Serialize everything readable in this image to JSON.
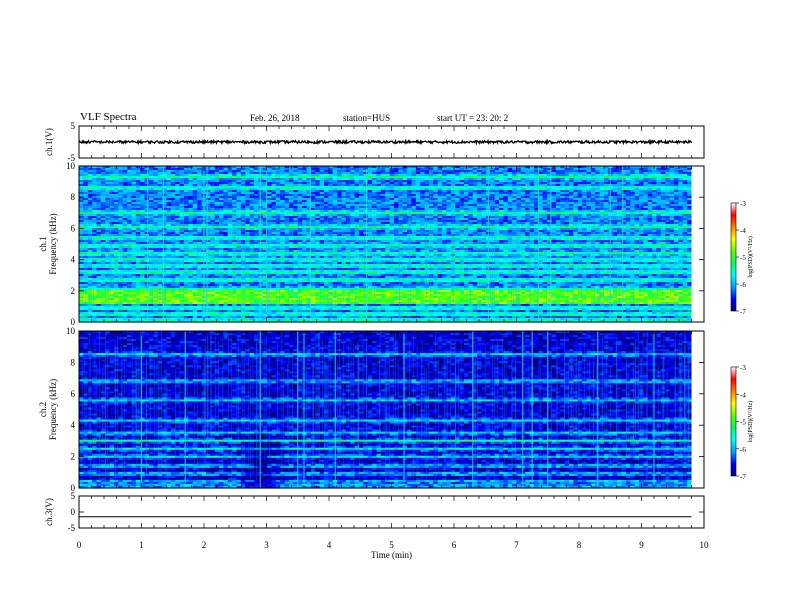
{
  "header": {
    "title": "VLF Spectra",
    "date": "Feb. 26, 2018",
    "station": "station=HUS",
    "start": "start  UT  =   23: 20: 2"
  },
  "chart_data": [
    {
      "type": "line",
      "panel": "ch1-waveform",
      "ylabel": "ch.1(V)",
      "ylim": [
        -5,
        5
      ],
      "yticks": [
        "5",
        "-5"
      ],
      "xlim": [
        0,
        10
      ],
      "series": [
        {
          "values_mean": 0.0,
          "noise_amplitude": 0.4,
          "x_end": 9.8
        }
      ]
    },
    {
      "type": "heatmap",
      "panel": "ch1-spectrogram",
      "ylabel": "ch.1\nFrequency (kHz)",
      "ylabel_line1": "ch.1",
      "ylabel_line2": "Frequency (kHz)",
      "ylim": [
        0,
        10
      ],
      "yticks": [
        "0",
        "2",
        "4",
        "6",
        "8",
        "10"
      ],
      "xlim": [
        0,
        10
      ],
      "x_data_end": 9.8,
      "bands_khz": [
        0.5,
        0.9,
        1.3,
        1.7,
        2.1,
        2.7,
        3.2,
        3.6,
        4.0,
        4.4,
        4.9,
        5.4,
        6.1,
        7.0,
        8.6,
        9.3
      ],
      "strong_band_khz": [
        1.2,
        2.0
      ],
      "background_level": -6.2,
      "impulse_times_min": [
        1.1,
        1.35,
        2.0,
        2.05,
        2.9,
        3.0,
        3.7,
        4.6,
        6.55,
        7.35,
        7.55,
        8.5,
        8.7
      ]
    },
    {
      "type": "heatmap",
      "panel": "ch2-spectrogram",
      "ylabel_line1": "ch.2",
      "ylabel_line2": "Frequency (kHz)",
      "ylim": [
        0,
        10
      ],
      "yticks": [
        "0",
        "2",
        "4",
        "6",
        "8",
        "10"
      ],
      "xlim": [
        0,
        10
      ],
      "x_data_end": 9.8,
      "bands_khz": [
        0.4,
        0.9,
        1.4,
        2.0,
        2.5,
        3.0,
        3.5,
        4.3,
        5.6,
        6.8,
        8.5
      ],
      "strong_band_khz": [
        2.9,
        3.1
      ],
      "background_level": -6.7,
      "dark_blob": {
        "t_min": 2.5,
        "t_max": 3.3,
        "f_max_khz": 3.5
      },
      "impulse_times_min": [
        1.0,
        1.7,
        2.9,
        3.5,
        3.6,
        4.1,
        5.2,
        6.3,
        7.1,
        7.25,
        7.5,
        8.3,
        9.2
      ]
    },
    {
      "type": "line",
      "panel": "ch3-waveform",
      "ylabel": "ch.3(V)",
      "ylim": [
        -5,
        5
      ],
      "yticks": [
        "5",
        "0",
        "-5"
      ],
      "xlim": [
        0,
        10
      ],
      "series": [
        {
          "values_mean": -1.5,
          "noise_amplitude": 0.0,
          "x_end": 9.8
        }
      ],
      "xlabel": "Time  (min)",
      "xticks": [
        "0",
        "1",
        "2",
        "3",
        "4",
        "5",
        "6",
        "7",
        "8",
        "9",
        "10"
      ]
    }
  ],
  "colorbar": {
    "label": "log(PSD)(V²/Hz)",
    "ticks": [
      "-3",
      "-4",
      "-5",
      "-6",
      "-7"
    ],
    "range": [
      -7,
      -3
    ],
    "colors": [
      "#000080",
      "#0000ff",
      "#00a0ff",
      "#00ffff",
      "#00ff60",
      "#60ff00",
      "#ffff00",
      "#ff8000",
      "#ff0000",
      "#ffffff"
    ]
  }
}
